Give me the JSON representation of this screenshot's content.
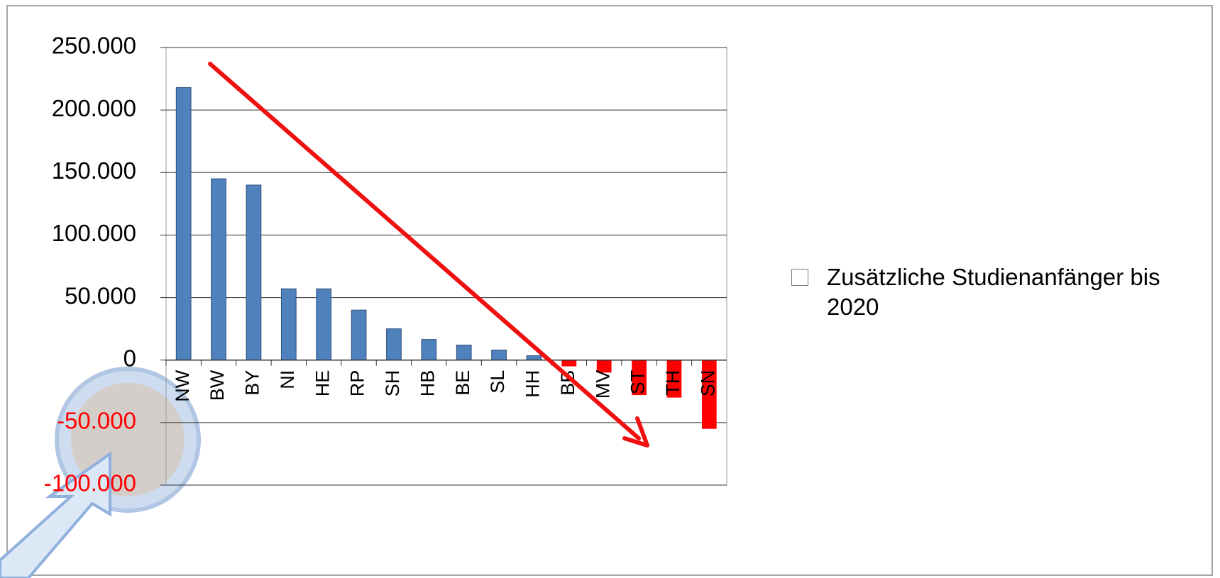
{
  "chart_data": {
    "type": "bar",
    "categories": [
      "NW",
      "BW",
      "BY",
      "NI",
      "HE",
      "RP",
      "SH",
      "HB",
      "BE",
      "SL",
      "HH",
      "BB",
      "MV",
      "ST",
      "TH",
      "SN"
    ],
    "series": [
      {
        "name": "Zusätzliche Studienanfänger bis 2020",
        "color": "#4f81bd",
        "negative_color": "#ff0000",
        "values": [
          218000,
          145000,
          140000,
          57000,
          57000,
          40000,
          25000,
          16500,
          12000,
          8000,
          3500,
          -5000,
          -10000,
          -28000,
          -30000,
          -55000
        ]
      }
    ],
    "ylim": [
      -100000,
      250000
    ],
    "yticks": [
      {
        "value": -100000,
        "label": "-100.000"
      },
      {
        "value": -50000,
        "label": "-50.000"
      },
      0,
      {
        "value": 50000,
        "label": "50.000"
      },
      {
        "value": 100000,
        "label": "100.000"
      },
      {
        "value": 150000,
        "label": "150.000"
      },
      {
        "value": 200000,
        "label": "200.000"
      },
      {
        "value": 250000,
        "label": "250.000"
      }
    ],
    "grid": true
  }
}
